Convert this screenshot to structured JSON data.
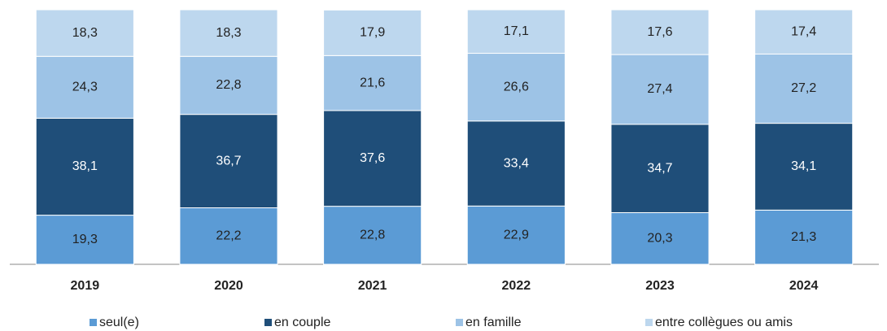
{
  "chart_data": {
    "type": "bar",
    "stacked": true,
    "categories": [
      "2019",
      "2020",
      "2021",
      "2022",
      "2023",
      "2024"
    ],
    "ylim": [
      0,
      100
    ],
    "series": [
      {
        "name": "seul(e)",
        "color": "#5b9bd5",
        "values": [
          19.3,
          22.2,
          22.8,
          22.9,
          20.3,
          21.3
        ],
        "value_labels": [
          "19,3",
          "22,2",
          "22,8",
          "22,9",
          "20,3",
          "21,3"
        ]
      },
      {
        "name": "en couple",
        "color": "#1f4e79",
        "values": [
          38.1,
          36.7,
          37.6,
          33.4,
          34.7,
          34.1
        ],
        "value_labels": [
          "38,1",
          "36,7",
          "37,6",
          "33,4",
          "34,7",
          "34,1"
        ]
      },
      {
        "name": "en famille",
        "color": "#9dc3e6",
        "values": [
          24.3,
          22.8,
          21.6,
          26.6,
          27.4,
          27.2
        ],
        "value_labels": [
          "24,3",
          "22,8",
          "21,6",
          "26,6",
          "27,4",
          "27,2"
        ]
      },
      {
        "name": "entre collègues ou amis",
        "color": "#bdd7ee",
        "values": [
          18.3,
          18.3,
          17.9,
          17.1,
          17.6,
          17.4
        ],
        "value_labels": [
          "18,3",
          "18,3",
          "17,9",
          "17,1",
          "17,6",
          "17,4"
        ]
      }
    ]
  }
}
